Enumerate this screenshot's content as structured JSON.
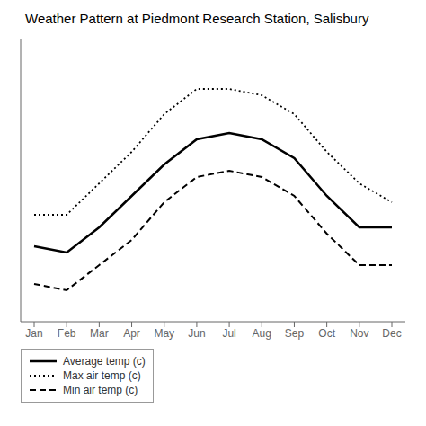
{
  "chart_data": {
    "type": "line",
    "title": "Weather Pattern at Piedmont Research Station, Salisbury",
    "categories": [
      "Jan",
      "Feb",
      "Mar",
      "Apr",
      "May",
      "Jun",
      "Jul",
      "Aug",
      "Sep",
      "Oct",
      "Nov",
      "Dec"
    ],
    "series": [
      {
        "name": "Average temp (c)",
        "color": "#000000",
        "line_style": "solid",
        "values": [
          7,
          6,
          10,
          15,
          20,
          24,
          25,
          24,
          21,
          15,
          10,
          10
        ]
      },
      {
        "name": "Max air temp (c)",
        "color": "#000000",
        "line_style": "dotted",
        "values": [
          12,
          12,
          17,
          22,
          28,
          32,
          32,
          31,
          28,
          22,
          17,
          14
        ]
      },
      {
        "name": "Min air temp (c)",
        "color": "#000000",
        "line_style": "dashed",
        "values": [
          1,
          0,
          4,
          8,
          14,
          18,
          19,
          18,
          15,
          9,
          4,
          4
        ]
      }
    ],
    "ylim": [
      -5,
      40
    ],
    "grid": false,
    "legend": "bottom",
    "tick_labels": "x"
  }
}
